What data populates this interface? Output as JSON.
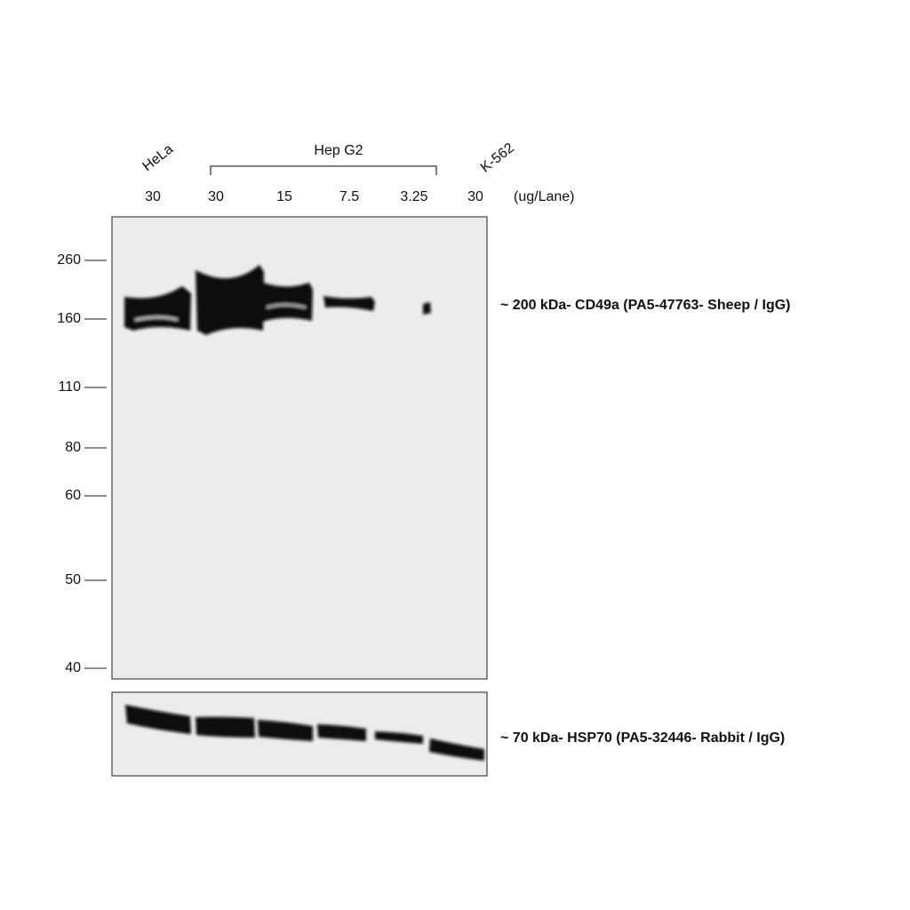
{
  "lanes": {
    "cell_lines": [
      "HeLa",
      "Hep G2",
      "K-562"
    ],
    "loads": [
      "30",
      "30",
      "15",
      "7.5",
      "3.25",
      "30"
    ],
    "load_unit": "(ug/Lane)"
  },
  "markers": [
    "260",
    "160",
    "110",
    "80",
    "60",
    "50",
    "40"
  ],
  "band_labels": [
    "~ 200 kDa- CD49a (PA5-47763- Sheep / IgG)",
    "~ 70 kDa- HSP70 (PA5-32446- Rabbit / IgG)"
  ]
}
